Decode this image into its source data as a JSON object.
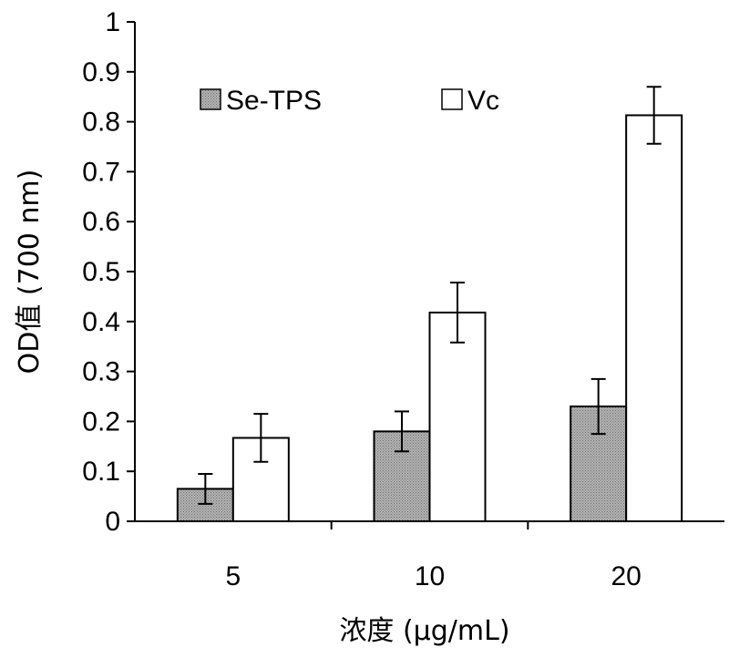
{
  "chart_data": {
    "type": "bar",
    "categories": [
      "5",
      "10",
      "20"
    ],
    "series": [
      {
        "name": "Se-TPS",
        "values": [
          0.065,
          0.18,
          0.23
        ],
        "errors": [
          0.03,
          0.04,
          0.055
        ],
        "color": "#a8a8a8"
      },
      {
        "name": "Vc",
        "values": [
          0.167,
          0.418,
          0.813
        ],
        "errors": [
          0.048,
          0.06,
          0.057
        ],
        "color": "#ffffff"
      }
    ],
    "xlabel": "浓度 (μg/mL)",
    "ylabel": "OD值 (700 nm)",
    "ylim": [
      0,
      1
    ],
    "yticks": [
      "0",
      "0.1",
      "0.2",
      "0.3",
      "0.4",
      "0.5",
      "0.6",
      "0.7",
      "0.8",
      "0.9",
      "1"
    ],
    "legend_position": "top-left",
    "grid": false
  }
}
